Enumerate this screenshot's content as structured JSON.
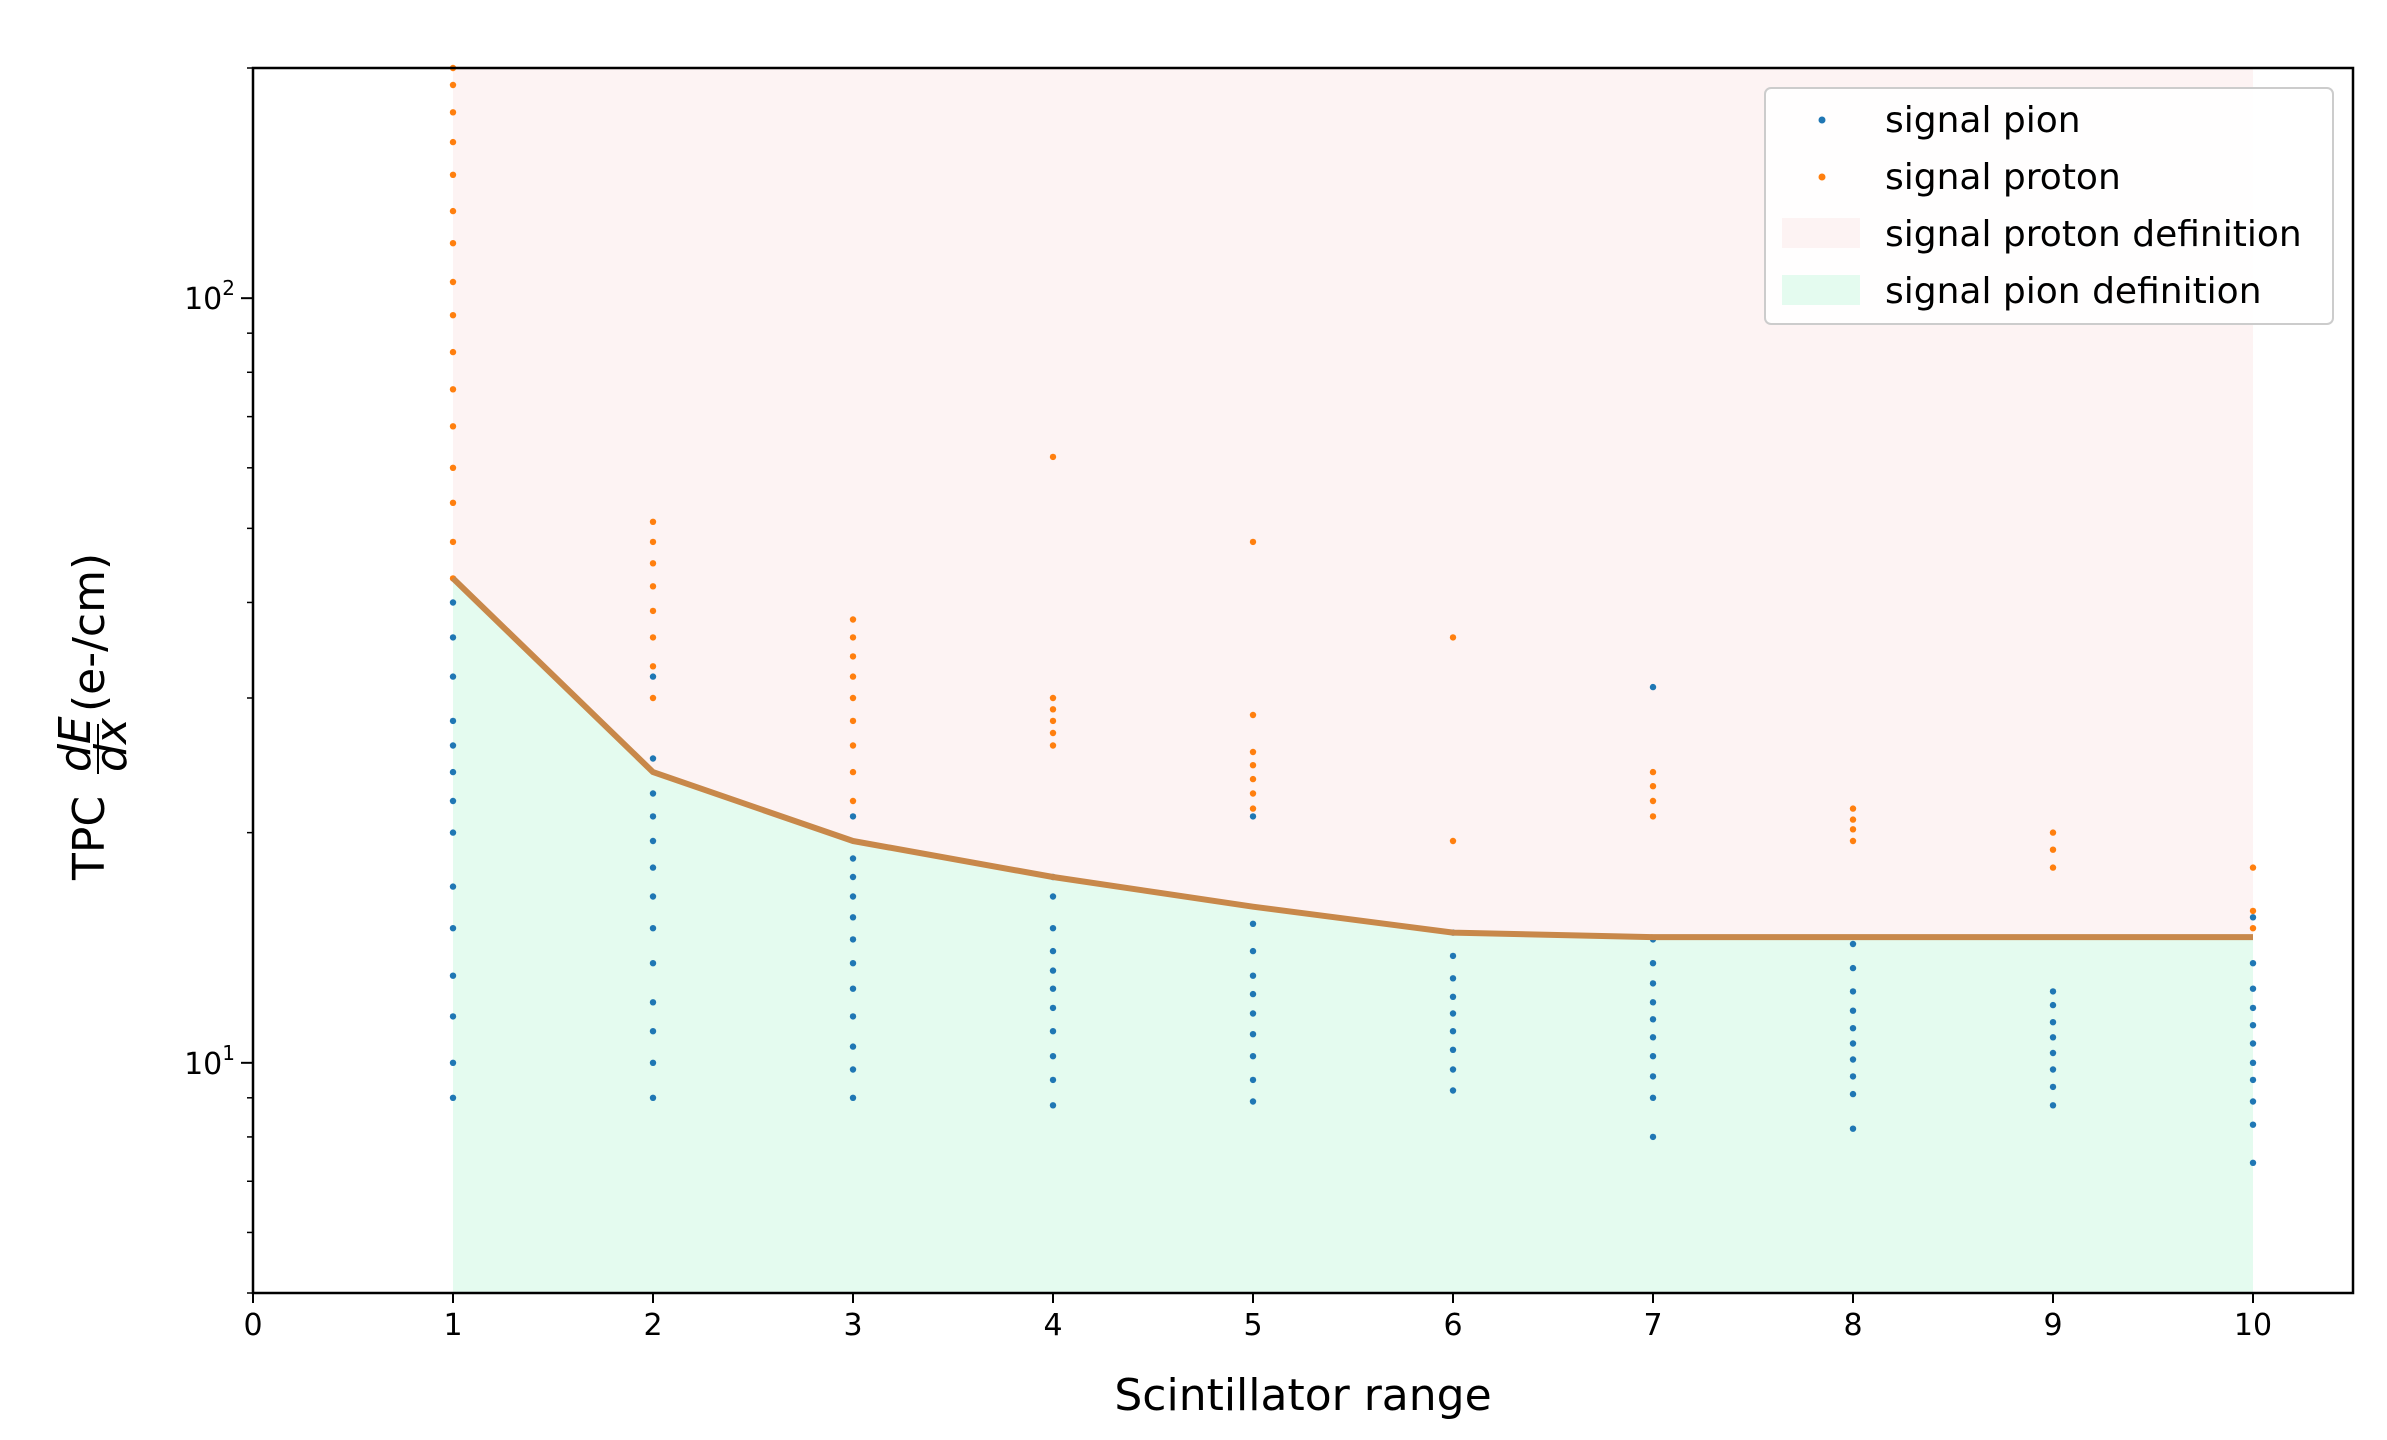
{
  "chart_data": {
    "type": "scatter",
    "xlabel": "Scintillator range",
    "ylabel": "TPC dE/dx (e-/cm)",
    "ylabel_parts": {
      "prefix": "TPC",
      "frac_num": "dE",
      "frac_den": "dx",
      "suffix": "(e-/cm)"
    },
    "yscale": "log",
    "xlim": [
      0,
      10.5
    ],
    "ylim": [
      5,
      200
    ],
    "x_ticks": [
      "0",
      "1",
      "2",
      "3",
      "4",
      "5",
      "6",
      "7",
      "8",
      "9",
      "10"
    ],
    "y_ticks": [
      {
        "value": 10,
        "base": "10",
        "exp": "1"
      },
      {
        "value": 100,
        "base": "10",
        "exp": "2"
      }
    ],
    "legend": [
      {
        "label": "signal pion",
        "kind": "marker",
        "color": "#1f77b4"
      },
      {
        "label": "signal proton",
        "kind": "marker",
        "color": "#ff7f0e"
      },
      {
        "label": "signal proton definition",
        "kind": "patch",
        "color": "#fdf3f3"
      },
      {
        "label": "signal pion definition",
        "kind": "patch",
        "color": "#e4fbef"
      }
    ],
    "boundary": {
      "name": "pion/proton cut",
      "color": "#c8884a",
      "x": [
        1,
        2,
        3,
        4,
        5,
        6,
        7,
        8,
        9,
        10
      ],
      "y": [
        43,
        24,
        19.5,
        17.5,
        16,
        14.8,
        14.6,
        14.6,
        14.6,
        14.6
      ]
    },
    "regions": {
      "proton_region_color": "#fdf3f3",
      "pion_region_color": "#e4fbef",
      "x_range": [
        1,
        10
      ]
    },
    "series": [
      {
        "name": "signal pion",
        "color": "#1f77b4",
        "points": [
          [
            1,
            9.0
          ],
          [
            1,
            10.0
          ],
          [
            1,
            11.5
          ],
          [
            1,
            13.0
          ],
          [
            1,
            15.0
          ],
          [
            1,
            17.0
          ],
          [
            1,
            20.0
          ],
          [
            1,
            22.0
          ],
          [
            1,
            24.0
          ],
          [
            1,
            26.0
          ],
          [
            1,
            28.0
          ],
          [
            1,
            32.0
          ],
          [
            1,
            36.0
          ],
          [
            1,
            40.0
          ],
          [
            2,
            9.0
          ],
          [
            2,
            10.0
          ],
          [
            2,
            11.0
          ],
          [
            2,
            12.0
          ],
          [
            2,
            13.5
          ],
          [
            2,
            15.0
          ],
          [
            2,
            16.5
          ],
          [
            2,
            18.0
          ],
          [
            2,
            19.5
          ],
          [
            2,
            21.0
          ],
          [
            2,
            22.5
          ],
          [
            2,
            25.0
          ],
          [
            2,
            32.0
          ],
          [
            3,
            9.0
          ],
          [
            3,
            9.8
          ],
          [
            3,
            10.5
          ],
          [
            3,
            11.5
          ],
          [
            3,
            12.5
          ],
          [
            3,
            13.5
          ],
          [
            3,
            14.5
          ],
          [
            3,
            15.5
          ],
          [
            3,
            16.5
          ],
          [
            3,
            17.5
          ],
          [
            3,
            18.5
          ],
          [
            3,
            21.0
          ],
          [
            4,
            8.8
          ],
          [
            4,
            9.5
          ],
          [
            4,
            10.2
          ],
          [
            4,
            11.0
          ],
          [
            4,
            11.8
          ],
          [
            4,
            12.5
          ],
          [
            4,
            13.2
          ],
          [
            4,
            14.0
          ],
          [
            4,
            15.0
          ],
          [
            4,
            16.5
          ],
          [
            4,
            17.5
          ],
          [
            5,
            8.9
          ],
          [
            5,
            9.5
          ],
          [
            5,
            10.2
          ],
          [
            5,
            10.9
          ],
          [
            5,
            11.6
          ],
          [
            5,
            12.3
          ],
          [
            5,
            13.0
          ],
          [
            5,
            14.0
          ],
          [
            5,
            15.2
          ],
          [
            5,
            21.0
          ],
          [
            6,
            9.2
          ],
          [
            6,
            9.8
          ],
          [
            6,
            10.4
          ],
          [
            6,
            11.0
          ],
          [
            6,
            11.6
          ],
          [
            6,
            12.2
          ],
          [
            6,
            12.9
          ],
          [
            6,
            13.8
          ],
          [
            6,
            14.8
          ],
          [
            7,
            8.0
          ],
          [
            7,
            9.0
          ],
          [
            7,
            9.6
          ],
          [
            7,
            10.2
          ],
          [
            7,
            10.8
          ],
          [
            7,
            11.4
          ],
          [
            7,
            12.0
          ],
          [
            7,
            12.7
          ],
          [
            7,
            13.5
          ],
          [
            7,
            14.5
          ],
          [
            7,
            31.0
          ],
          [
            8,
            8.2
          ],
          [
            8,
            9.1
          ],
          [
            8,
            9.6
          ],
          [
            8,
            10.1
          ],
          [
            8,
            10.6
          ],
          [
            8,
            11.1
          ],
          [
            8,
            11.7
          ],
          [
            8,
            12.4
          ],
          [
            8,
            13.3
          ],
          [
            8,
            14.3
          ],
          [
            9,
            8.8
          ],
          [
            9,
            9.3
          ],
          [
            9,
            9.8
          ],
          [
            9,
            10.3
          ],
          [
            9,
            10.8
          ],
          [
            9,
            11.3
          ],
          [
            9,
            11.9
          ],
          [
            9,
            12.4
          ],
          [
            10,
            7.4
          ],
          [
            10,
            8.3
          ],
          [
            10,
            8.9
          ],
          [
            10,
            9.5
          ],
          [
            10,
            10.0
          ],
          [
            10,
            10.6
          ],
          [
            10,
            11.2
          ],
          [
            10,
            11.8
          ],
          [
            10,
            12.5
          ],
          [
            10,
            13.5
          ],
          [
            10,
            15.5
          ]
        ]
      },
      {
        "name": "signal proton",
        "color": "#ff7f0e",
        "points": [
          [
            1,
            43.0
          ],
          [
            1,
            48.0
          ],
          [
            1,
            54.0
          ],
          [
            1,
            60.0
          ],
          [
            1,
            68.0
          ],
          [
            1,
            76.0
          ],
          [
            1,
            85.0
          ],
          [
            1,
            95.0
          ],
          [
            1,
            105.0
          ],
          [
            1,
            118.0
          ],
          [
            1,
            130.0
          ],
          [
            1,
            145.0
          ],
          [
            1,
            160.0
          ],
          [
            1,
            175.0
          ],
          [
            1,
            190.0
          ],
          [
            1,
            200.0
          ],
          [
            2,
            30.0
          ],
          [
            2,
            33.0
          ],
          [
            2,
            36.0
          ],
          [
            2,
            39.0
          ],
          [
            2,
            42.0
          ],
          [
            2,
            45.0
          ],
          [
            2,
            48.0
          ],
          [
            2,
            51.0
          ],
          [
            3,
            22.0
          ],
          [
            3,
            24.0
          ],
          [
            3,
            26.0
          ],
          [
            3,
            28.0
          ],
          [
            3,
            30.0
          ],
          [
            3,
            32.0
          ],
          [
            3,
            34.0
          ],
          [
            3,
            36.0
          ],
          [
            3,
            38.0
          ],
          [
            4,
            26.0
          ],
          [
            4,
            27.0
          ],
          [
            4,
            28.0
          ],
          [
            4,
            29.0
          ],
          [
            4,
            30.0
          ],
          [
            4,
            62.0
          ],
          [
            5,
            21.5
          ],
          [
            5,
            22.5
          ],
          [
            5,
            23.5
          ],
          [
            5,
            24.5
          ],
          [
            5,
            25.5
          ],
          [
            5,
            28.5
          ],
          [
            5,
            48.0
          ],
          [
            6,
            19.5
          ],
          [
            6,
            36.0
          ],
          [
            7,
            21.0
          ],
          [
            7,
            22.0
          ],
          [
            7,
            23.0
          ],
          [
            7,
            24.0
          ],
          [
            8,
            19.5
          ],
          [
            8,
            20.2
          ],
          [
            8,
            20.8
          ],
          [
            8,
            21.5
          ],
          [
            9,
            18.0
          ],
          [
            9,
            19.0
          ],
          [
            9,
            20.0
          ],
          [
            10,
            15.0
          ],
          [
            10,
            15.8
          ],
          [
            10,
            18.0
          ]
        ]
      }
    ]
  }
}
